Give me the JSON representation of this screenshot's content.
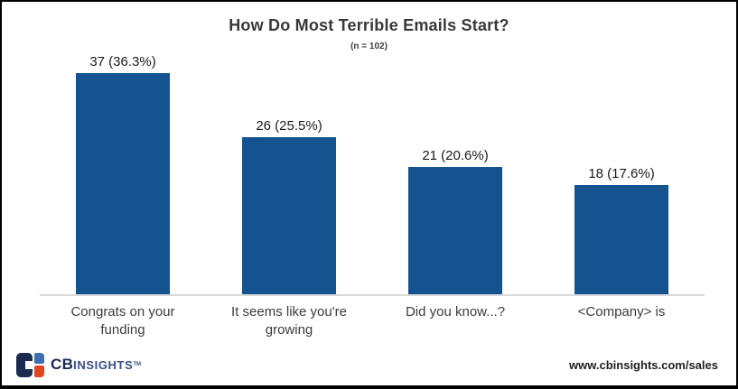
{
  "chart_data": {
    "type": "bar",
    "title": "How Do Most Terrible Emails Start?",
    "subtitle": "(n = 102)",
    "n": 102,
    "categories": [
      "Congrats on your funding",
      "It seems like you're growing",
      "Did you know...?",
      "<Company> is"
    ],
    "values": [
      37,
      26,
      21,
      18
    ],
    "percentages": [
      36.3,
      25.5,
      20.6,
      17.6
    ],
    "data_labels": [
      "37 (36.3%)",
      "26 (25.5%)",
      "21 (20.6%)",
      "18 (17.6%)"
    ],
    "xlabel": "",
    "ylabel": "",
    "ylim": [
      0,
      40
    ],
    "grid": false,
    "legend": false,
    "bar_color": "#14538f",
    "axis_line_color": "#d9d9d9"
  },
  "footer": {
    "logo": {
      "cb": "CB",
      "insights": "INSIGHTS",
      "tm": "TM"
    },
    "url": "www.cbinsights.com/sales"
  }
}
